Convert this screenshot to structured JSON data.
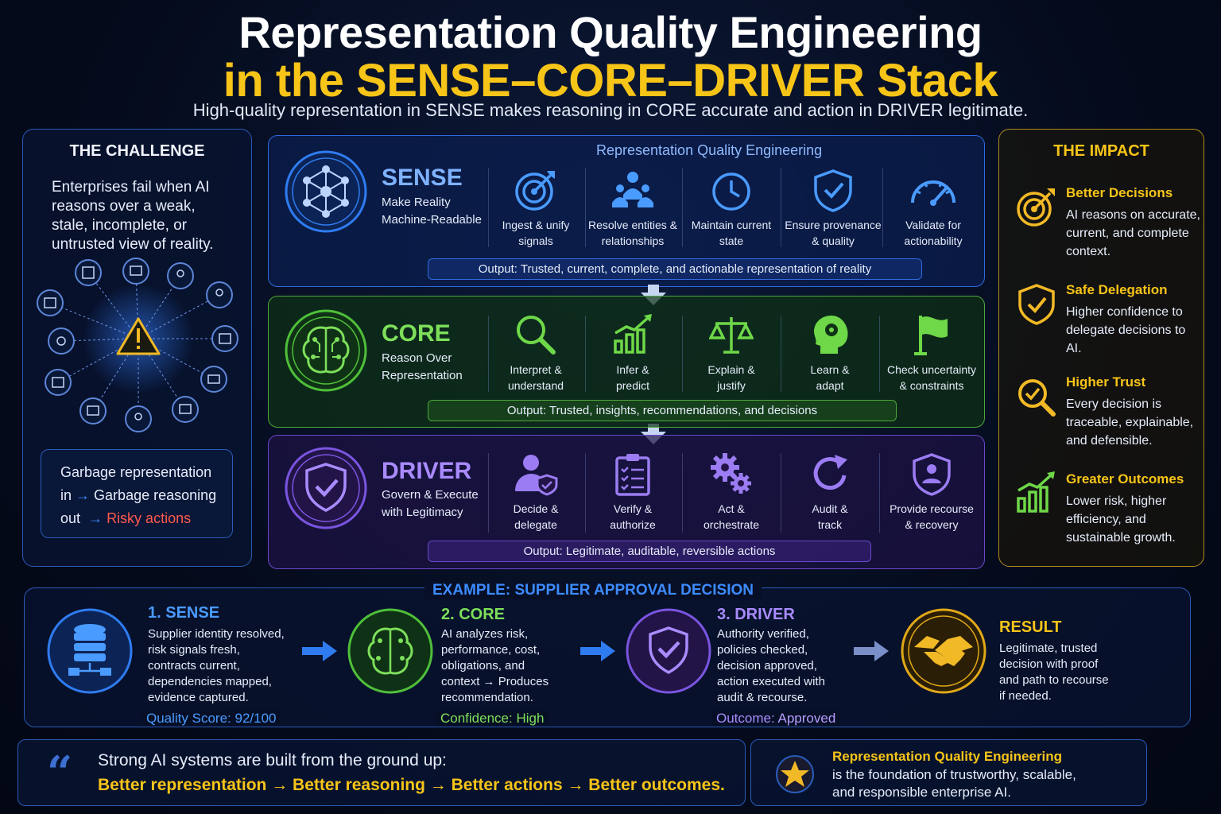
{
  "title_line1": "Representation Quality Engineering",
  "title_line2": "in the SENSE–CORE–DRIVER Stack",
  "subtitle": "High-quality representation in SENSE makes reasoning in CORE accurate and action in DRIVER legitimate.",
  "challenge": {
    "heading": "THE CHALLENGE",
    "desc": "Enterprises fail when AI reasons over a weak, stale, incomplete, or untrusted view of reality.",
    "g1": "Garbage representation",
    "g2a": "in",
    "g2b": "Garbage reasoning",
    "g3a": "out",
    "g3b": "Risky actions"
  },
  "rqe_label": "Representation Quality Engineering",
  "sense": {
    "name": "SENSE",
    "sub1": "Make Reality",
    "sub2": "Machine-Readable",
    "cols": [
      {
        "l1": "Ingest & unify",
        "l2": "signals"
      },
      {
        "l1": "Resolve entities &",
        "l2": "relationships"
      },
      {
        "l1": "Maintain current",
        "l2": "state"
      },
      {
        "l1": "Ensure provenance",
        "l2": "& quality"
      },
      {
        "l1": "Validate for",
        "l2": "actionability"
      }
    ],
    "output": "Output: Trusted, current, complete, and actionable representation of reality"
  },
  "core": {
    "name": "CORE",
    "sub1": "Reason Over",
    "sub2": "Representation",
    "cols": [
      {
        "l1": "Interpret &",
        "l2": "understand"
      },
      {
        "l1": "Infer &",
        "l2": "predict"
      },
      {
        "l1": "Explain &",
        "l2": "justify"
      },
      {
        "l1": "Learn &",
        "l2": "adapt"
      },
      {
        "l1": "Check uncertainty",
        "l2": "& constraints"
      }
    ],
    "output": "Output: Trusted, insights, recommendations, and decisions"
  },
  "driver": {
    "name": "DRIVER",
    "sub1": "Govern & Execute",
    "sub2": "with Legitimacy",
    "cols": [
      {
        "l1": "Decide &",
        "l2": "delegate"
      },
      {
        "l1": "Verify &",
        "l2": "authorize"
      },
      {
        "l1": "Act &",
        "l2": "orchestrate"
      },
      {
        "l1": "Audit &",
        "l2": "track"
      },
      {
        "l1": "Provide recourse",
        "l2": "& recovery"
      }
    ],
    "output": "Output: Legitimate, auditable, reversible actions"
  },
  "impact": {
    "heading": "THE IMPACT",
    "items": [
      {
        "h": "Better Decisions",
        "t": "AI reasons on accurate, current, and complete context."
      },
      {
        "h": "Safe Delegation",
        "t": "Higher confidence to delegate decisions to AI."
      },
      {
        "h": "Higher Trust",
        "t": "Every decision is traceable, explainable, and defensible."
      },
      {
        "h": "Greater Outcomes",
        "t": "Lower risk, higher efficiency, and sustainable growth."
      }
    ]
  },
  "example": {
    "heading": "EXAMPLE: SUPPLIER APPROVAL DECISION",
    "s1": {
      "h": "1. SENSE",
      "lines": [
        "Supplier identity resolved,",
        "risk signals fresh,",
        "contracts current,",
        "dependencies mapped,",
        "evidence captured."
      ],
      "footer": "Quality Score: 92/100"
    },
    "s2": {
      "h": "2. CORE",
      "lines": [
        "AI analyzes risk,",
        "performance, cost,",
        "obligations, and",
        "context → Produces",
        "recommendation."
      ],
      "footer": "Confidence: High"
    },
    "s3": {
      "h": "3. DRIVER",
      "lines": [
        "Authority verified,",
        "policies checked,",
        "decision approved,",
        "action executed with",
        "audit & recourse."
      ],
      "footer_label": "Outcome:",
      "footer_value": "Approved"
    },
    "result": {
      "h": "RESULT",
      "lines": [
        "Legitimate, trusted",
        "decision with proof",
        "and path to recourse",
        "if needed."
      ]
    }
  },
  "quote": {
    "mark": "“",
    "line1": "Strong AI systems are built from the ground up:",
    "line2": "Better representation → Better reasoning → Better actions → Better outcomes."
  },
  "foundation": {
    "h": "Representation Quality Engineering",
    "l1": "is the foundation of trustworthy, scalable,",
    "l2": "and responsible enterprise AI."
  }
}
